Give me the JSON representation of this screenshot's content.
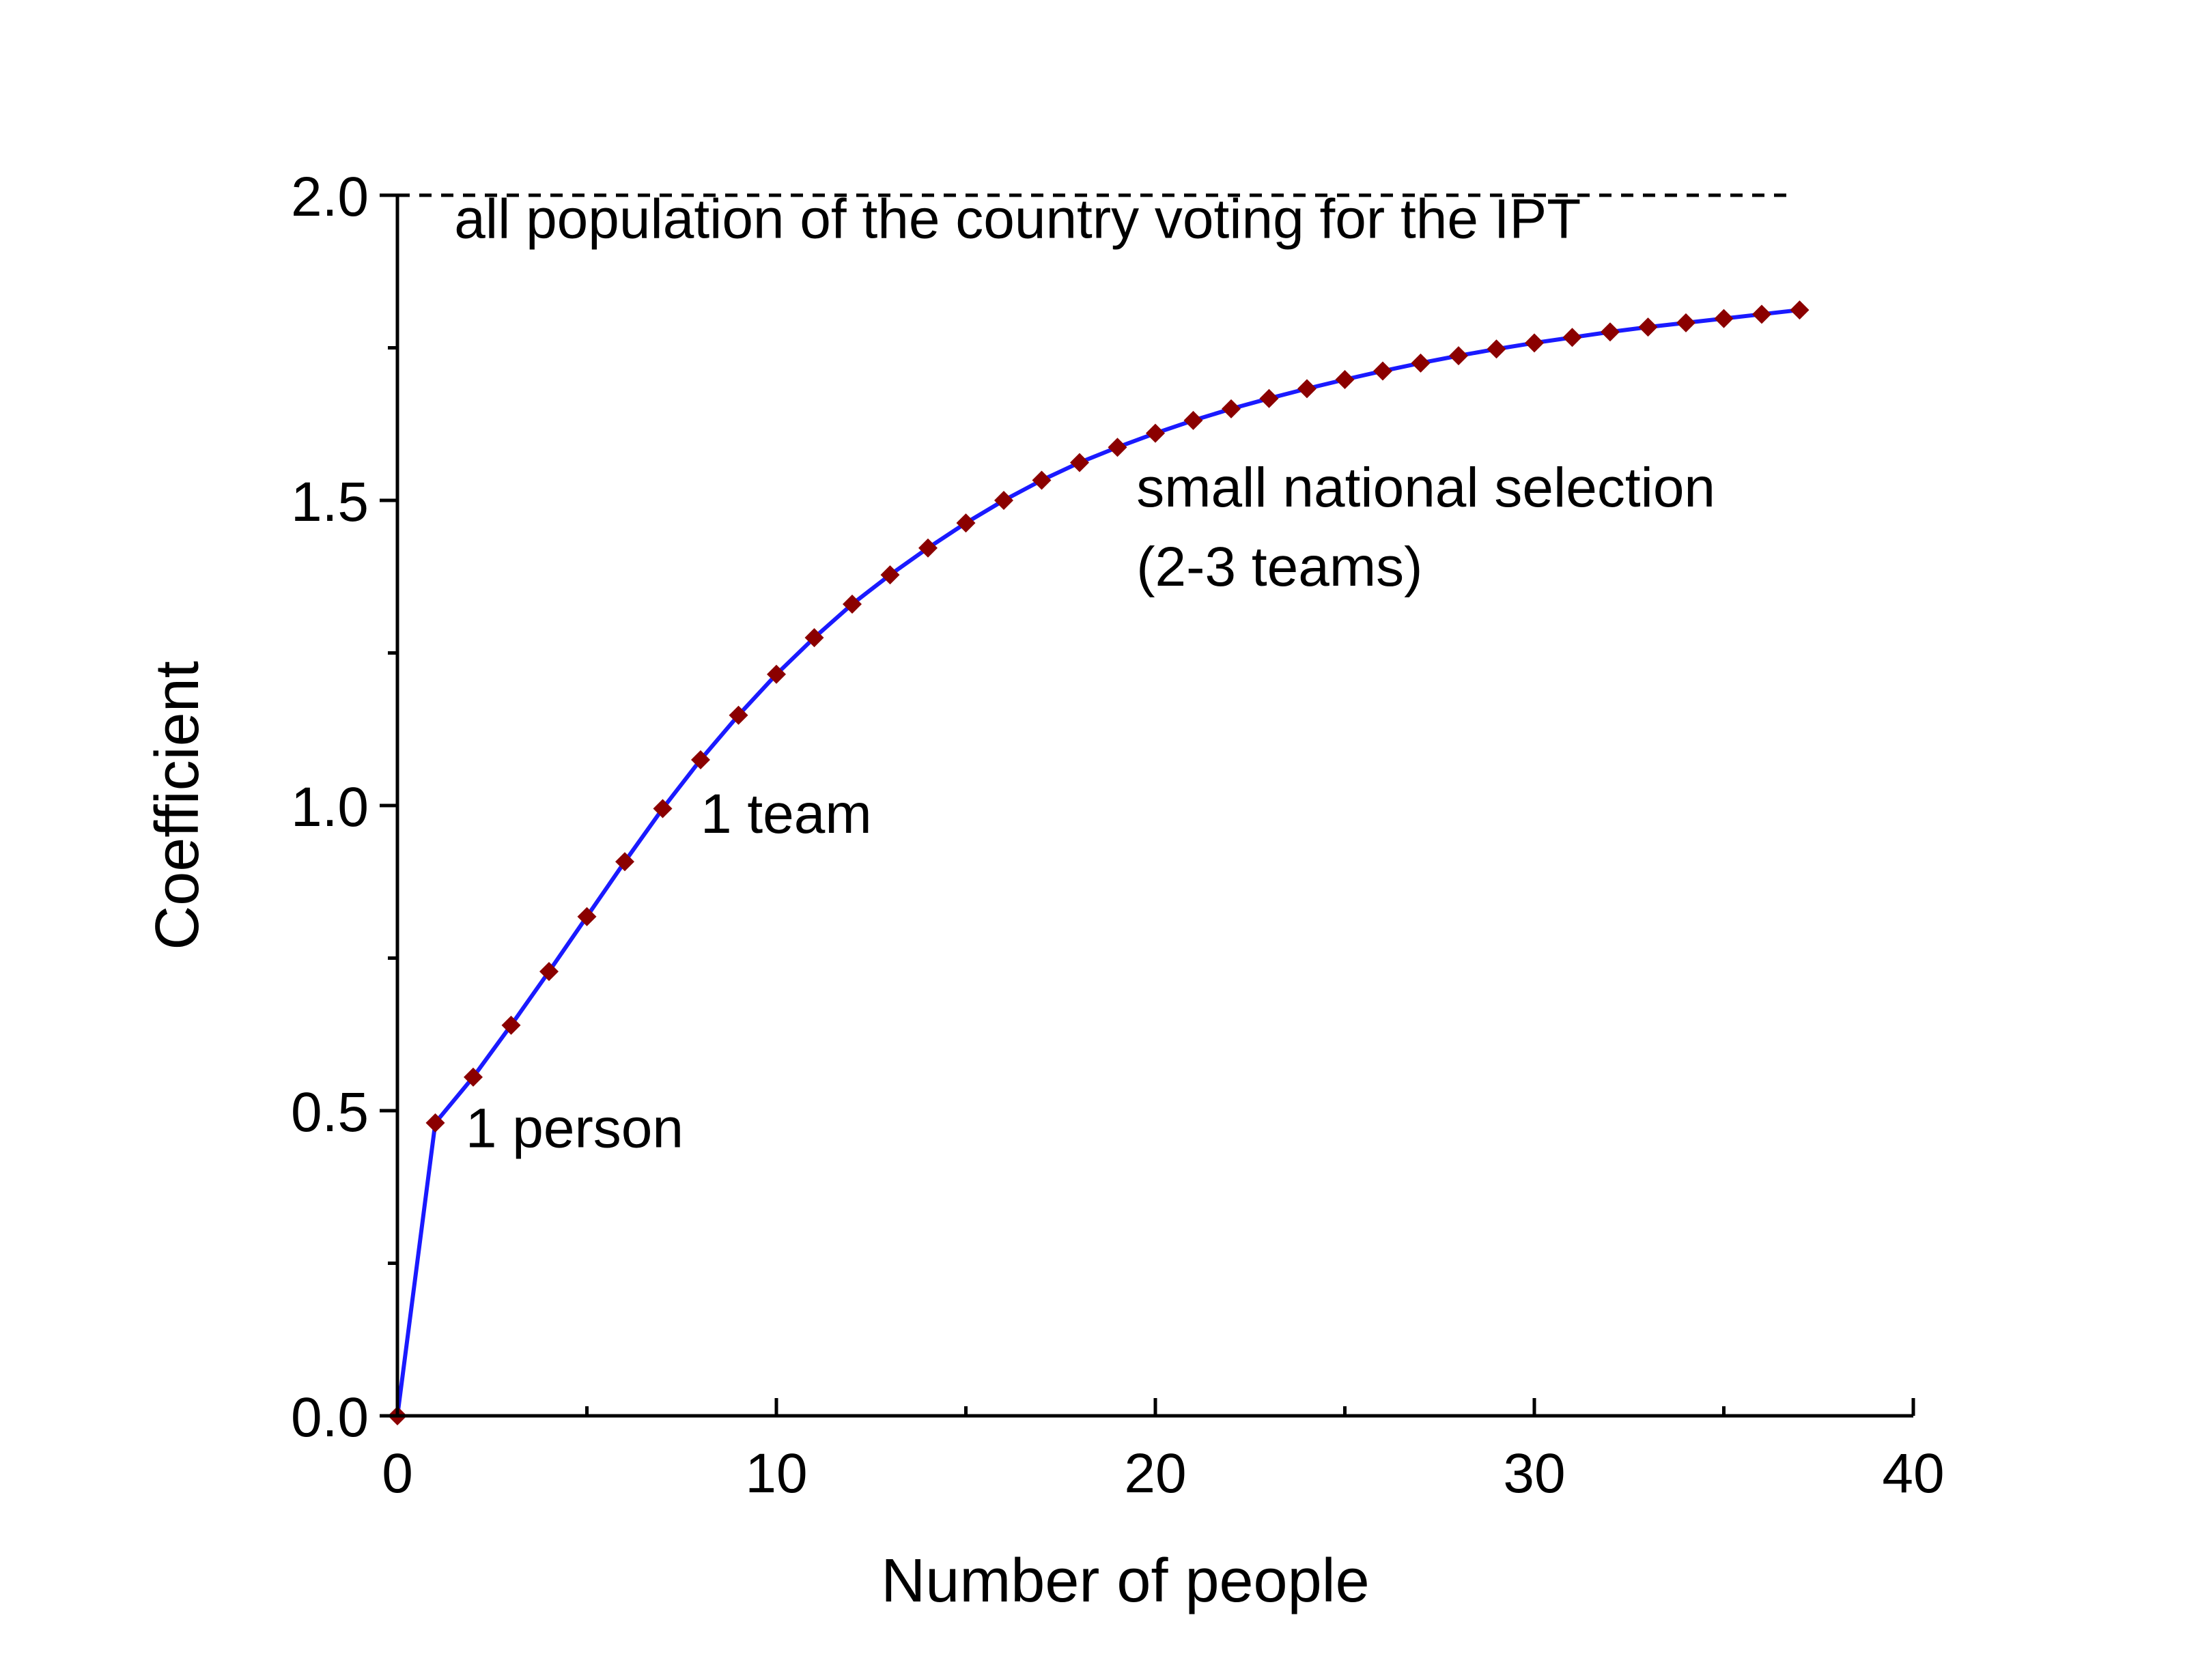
{
  "chart_data": {
    "type": "line",
    "title": "",
    "xlabel": "Number of people",
    "ylabel": "Coefficient",
    "xlim": [
      0,
      40
    ],
    "ylim": [
      0,
      2.0
    ],
    "x_ticks": [
      0,
      10,
      20,
      30,
      40
    ],
    "x_tick_labels": [
      "0",
      "10",
      "20",
      "30",
      "40"
    ],
    "y_ticks": [
      0,
      0.5,
      1.0,
      1.5,
      2.0
    ],
    "y_tick_labels": [
      "0.0",
      "0.5",
      "1.0",
      "1.5",
      "2.0"
    ],
    "grid": false,
    "series": [
      {
        "line_color": "#1a1aff",
        "marker": "diamond",
        "marker_color": "#8b0000",
        "x": [
          0,
          1,
          2,
          3,
          4,
          5,
          6,
          7,
          8,
          9,
          10,
          11,
          12,
          13,
          14,
          15,
          16,
          17,
          18,
          19,
          20,
          21,
          22,
          23,
          24,
          25,
          26,
          27,
          28,
          29,
          30,
          31,
          32,
          33,
          34,
          35,
          36,
          37
        ],
        "y": [
          0.0,
          0.48,
          0.555,
          0.64,
          0.728,
          0.818,
          0.908,
          0.995,
          1.075,
          1.148,
          1.215,
          1.275,
          1.33,
          1.378,
          1.422,
          1.463,
          1.5,
          1.533,
          1.562,
          1.587,
          1.61,
          1.631,
          1.65,
          1.667,
          1.683,
          1.698,
          1.712,
          1.725,
          1.737,
          1.748,
          1.758,
          1.767,
          1.776,
          1.784,
          1.791,
          1.798,
          1.805,
          1.812
        ]
      }
    ],
    "reference_lines": [
      {
        "y": 2.0,
        "style": "dashed",
        "color": "#000000"
      }
    ],
    "annotations": [
      {
        "text": "all population of the country voting for the IPT",
        "x": 1.5,
        "y": 1.93
      },
      {
        "text": "small national selection",
        "x": 19.5,
        "y": 1.49
      },
      {
        "text": "(2-3 teams)",
        "x": 19.5,
        "y": 1.36
      },
      {
        "text": "1 team",
        "x": 8.0,
        "y": 0.955
      },
      {
        "text": "1 person",
        "x": 1.8,
        "y": 0.44
      }
    ]
  }
}
